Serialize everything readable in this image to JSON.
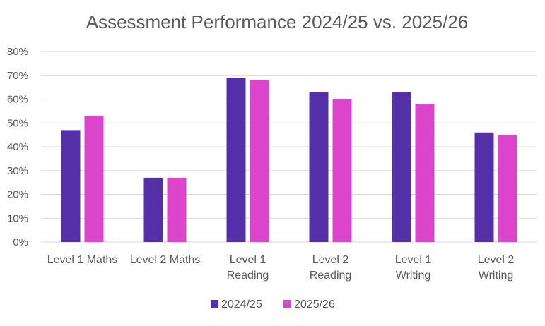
{
  "chart_data": {
    "type": "bar",
    "title": "Assessment Performance 2024/25 vs. 2025/26",
    "categories": [
      [
        "Level 1 Maths"
      ],
      [
        "Level 2 Maths"
      ],
      [
        "Level 1",
        "Reading"
      ],
      [
        "Level 2",
        "Reading"
      ],
      [
        "Level 1",
        "Writing"
      ],
      [
        "Level 2",
        "Writing"
      ]
    ],
    "series": [
      {
        "name": "2024/25",
        "color": "#5430a8",
        "values": [
          47,
          27,
          69,
          63,
          63,
          46
        ]
      },
      {
        "name": "2025/26",
        "color": "#dd44cc",
        "values": [
          53,
          27,
          68,
          60,
          58,
          45
        ]
      }
    ],
    "ylim": [
      0,
      80
    ],
    "yticks": [
      0,
      10,
      20,
      30,
      40,
      50,
      60,
      70,
      80
    ],
    "ytick_labels": [
      "0%",
      "10%",
      "20%",
      "30%",
      "40%",
      "50%",
      "60%",
      "70%",
      "80%"
    ],
    "grid": true,
    "legend_position": "bottom"
  }
}
